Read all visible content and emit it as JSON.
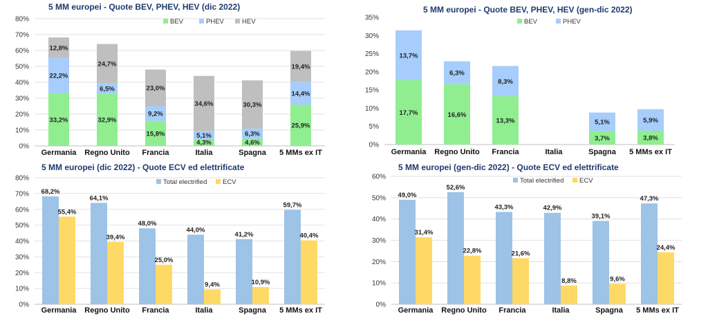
{
  "chart_data": [
    {
      "type": "bar",
      "stacked": true,
      "title": "5 MM europei  - Quote BEV, PHEV, HEV (dic 2022)",
      "categories": [
        "Germania",
        "Regno Unito",
        "Francia",
        "Italia",
        "Spagna",
        "5 MMs ex IT"
      ],
      "series": [
        {
          "name": "BEV",
          "values": [
            33.2,
            32.9,
            15.8,
            4.3,
            4.6,
            25.9
          ],
          "color": "#90ee90",
          "labels": [
            "33,2%",
            "32,9%",
            "15,8%",
            "4,3%",
            "4,6%",
            "25,9%"
          ]
        },
        {
          "name": "PHEV",
          "values": [
            22.2,
            6.5,
            9.2,
            5.1,
            6.3,
            14.4
          ],
          "color": "#a6cdfb",
          "labels": [
            "22,2%",
            "6,5%",
            "9,2%",
            "5,1%",
            "6,3%",
            "14,4%"
          ]
        },
        {
          "name": "HEV",
          "values": [
            12.8,
            24.7,
            23.0,
            34.6,
            30.3,
            19.4
          ],
          "color": "#bfbfbf",
          "labels": [
            "12,8%",
            "24,7%",
            "23,0%",
            "34,6%",
            "30,3%",
            "19,4%"
          ]
        }
      ],
      "ylim": [
        0,
        80
      ],
      "yticks": [
        "0%",
        "10%",
        "20%",
        "30%",
        "40%",
        "50%",
        "60%",
        "70%",
        "80%"
      ],
      "grid": true,
      "legend": "top"
    },
    {
      "type": "bar",
      "stacked": true,
      "title": "5 MM europei  - Quote BEV, PHEV, HEV (gen-dic 2022)",
      "categories": [
        "Germania",
        "Regno Unito",
        "Francia",
        "Italia",
        "Spagna",
        "5 MMs ex IT"
      ],
      "series": [
        {
          "name": "BEV",
          "values": [
            17.7,
            16.6,
            13.3,
            0,
            3.7,
            3.8
          ],
          "color": "#90ee90",
          "labels": [
            "17,7%",
            "16,6%",
            "13,3%",
            "",
            "3,7%",
            "3,8%"
          ]
        },
        {
          "name": "PHEV",
          "values": [
            13.7,
            6.3,
            8.3,
            0,
            5.1,
            5.9
          ],
          "color": "#a6cdfb",
          "labels": [
            "13,7%",
            "6,3%",
            "8,3%",
            "",
            "5,1%",
            "5,9%"
          ]
        }
      ],
      "ylim": [
        0,
        35
      ],
      "yticks": [
        "0%",
        "5%",
        "10%",
        "15%",
        "20%",
        "25%",
        "30%",
        "35%"
      ],
      "grid": false,
      "legend": "top"
    },
    {
      "type": "bar",
      "stacked": false,
      "title": "5 MM europei (dic 2022) - Quote ECV ed elettrificate",
      "categories": [
        "Germania",
        "Regno Unito",
        "Francia",
        "Italia",
        "Spagna",
        "5 MMs ex IT"
      ],
      "series": [
        {
          "name": "Total electrified",
          "values": [
            68.2,
            64.1,
            48.0,
            44.0,
            41.2,
            59.7
          ],
          "color": "#9dc3e6",
          "labels": [
            "68,2%",
            "64,1%",
            "48,0%",
            "44,0%",
            "41,2%",
            "59,7%"
          ]
        },
        {
          "name": "ECV",
          "values": [
            55.4,
            39.4,
            25.0,
            9.4,
            10.9,
            40.4
          ],
          "color": "#ffd966",
          "labels": [
            "55,4%",
            "39,4%",
            "25,0%",
            "9,4%",
            "10,9%",
            "40,4%"
          ]
        }
      ],
      "ylim": [
        0,
        80
      ],
      "yticks": [
        "0%",
        "10%",
        "20%",
        "30%",
        "40%",
        "50%",
        "60%",
        "70%",
        "80%"
      ],
      "grid": true,
      "legend": "top"
    },
    {
      "type": "bar",
      "stacked": false,
      "title": "5 MM europei (gen-dic 2022) - Quote ECV ed elettrificate",
      "categories": [
        "Germania",
        "Regno Unito",
        "Francia",
        "Italia",
        "Spagna",
        "5 MMs ex IT"
      ],
      "series": [
        {
          "name": "Total electrified",
          "values": [
            49.0,
            52.6,
            43.3,
            42.9,
            39.1,
            47.3
          ],
          "color": "#9dc3e6",
          "labels": [
            "49,0%",
            "52,6%",
            "43,3%",
            "42,9%",
            "39,1%",
            "47,3%"
          ]
        },
        {
          "name": "ECV",
          "values": [
            31.4,
            22.8,
            21.6,
            8.8,
            9.6,
            24.4
          ],
          "color": "#ffd966",
          "labels": [
            "31,4%",
            "22,8%",
            "21,6%",
            "8,8%",
            "9,6%",
            "24,4%"
          ]
        }
      ],
      "ylim": [
        0,
        60
      ],
      "yticks": [
        "0%",
        "10%",
        "20%",
        "30%",
        "40%",
        "50%",
        "60%"
      ],
      "grid": true,
      "legend": "top"
    }
  ]
}
